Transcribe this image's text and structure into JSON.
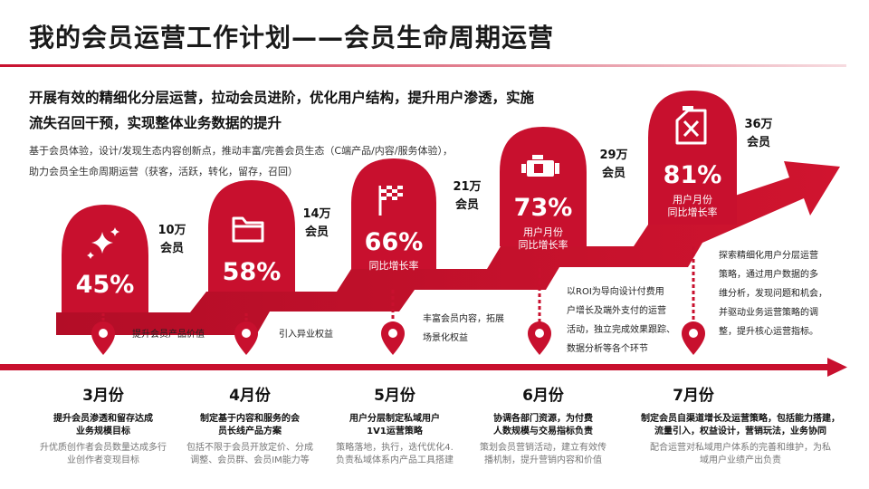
{
  "title": "我的会员运营工作计划——会员生命周期运营",
  "headline": {
    "line1": "开展有效的精细化分层运营，拉动会员进阶，优化用户结构，提升用户渗透，实施",
    "line2": "流失召回干预，实现整体业务数据的提升"
  },
  "subline": {
    "line1": "基于会员体验，设计/发现生态内容创新点，推动丰富/完善会员生态（C端产品/内容/服务体验），",
    "line2": "助力会员全生命周期运营（获客，活跃，转化，留存，召回）"
  },
  "colors": {
    "accent": "#c8102e",
    "dark": "#a10c24"
  },
  "stages": [
    {
      "icon": "sparkle-icon",
      "percent": "45%",
      "pct_label": "",
      "members": [
        "10万",
        "会员"
      ],
      "note": [
        "提升会员产品价值"
      ],
      "month": "3月份",
      "month_title": [
        "提升会员渗透和留存达成",
        "业务规模目标"
      ],
      "month_desc": [
        "升优质创作者会员数量达成多行",
        "业创作者变现目标"
      ]
    },
    {
      "icon": "folder-icon",
      "percent": "58%",
      "pct_label": "",
      "members": [
        "14万",
        "会员"
      ],
      "note": [
        "引入异业权益"
      ],
      "month": "4月份",
      "month_title": [
        "制定基于内容和服务的会",
        "员长线产品方案"
      ],
      "month_desc": [
        "包括不限于会员开放定价、分成",
        "调整、会员群、会员IM能力等"
      ]
    },
    {
      "icon": "checkered-flag-icon",
      "percent": "66%",
      "pct_label": "同比增长率",
      "members": [
        "21万",
        "会员"
      ],
      "note": [
        "丰富会员内容，拓展",
        "场景化权益"
      ],
      "month": "5月份",
      "month_title": [
        "用户分层制定私域用户",
        "1V1运营策略"
      ],
      "month_desc": [
        "策略落地，执行，迭代优化4.",
        "负责私域体系内产品工具搭建"
      ]
    },
    {
      "icon": "engine-icon",
      "percent": "73%",
      "pct_label": "用户月份\n同比增长率",
      "members": [
        "29万",
        "会员"
      ],
      "note": [
        "以ROI为导向设计付费用",
        "户增长及端外支付的运营",
        "活动，独立完成效果跟踪、",
        "数据分析等各个环节"
      ],
      "month": "6月份",
      "month_title": [
        "协调各部门资源，为付费",
        "人数规模与交易指标负责"
      ],
      "month_desc": [
        "策划会员营销活动，建立有效传",
        "播机制，提升营销内容和价值"
      ]
    },
    {
      "icon": "fuel-can-icon",
      "percent": "81%",
      "pct_label": "用户月份\n同比增长率",
      "members": [
        "36万",
        "会员"
      ],
      "note": [
        "探索精细化用户分层运营",
        "策略，通过用户数据的多",
        "维分析，发现问题和机会，",
        "并驱动业务运营策略的调",
        "整，提升核心运营指标。"
      ],
      "month": "7月份",
      "month_title": [
        "制定会员自渠道增长及运营策略，包括能力搭建，",
        "流量引入，权益设计，营销玩法，业务协同"
      ],
      "month_desc": [
        "配合运营对私域用户体系的完善和维护，为私",
        "域用户业绩产出负责"
      ]
    }
  ]
}
